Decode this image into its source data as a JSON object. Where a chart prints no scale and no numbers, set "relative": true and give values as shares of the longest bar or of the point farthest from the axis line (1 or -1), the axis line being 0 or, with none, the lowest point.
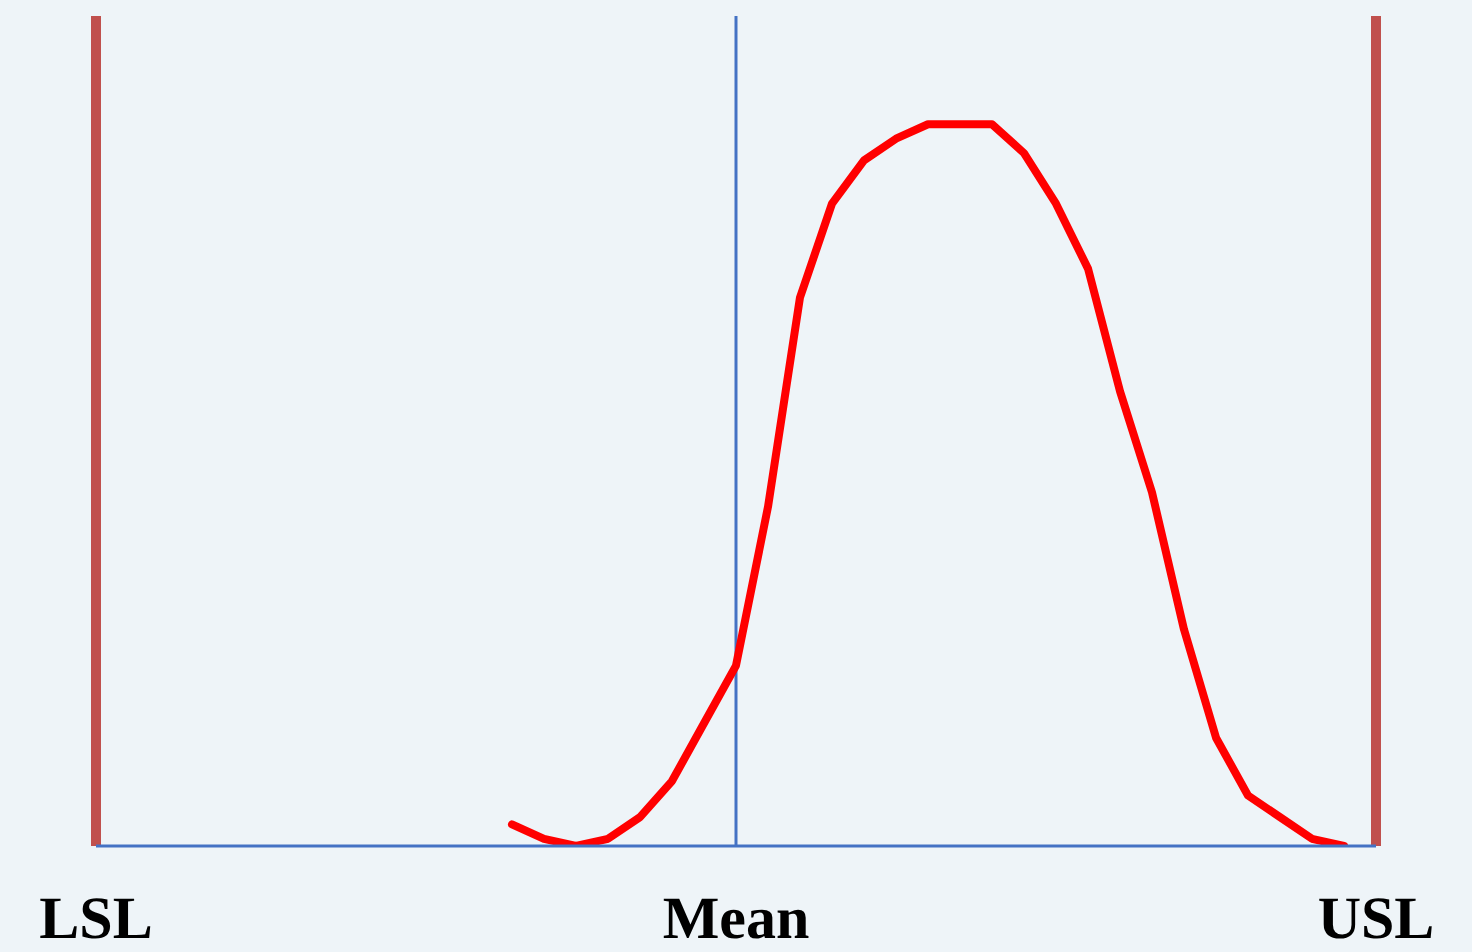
{
  "chart_data": {
    "type": "line",
    "relative": true,
    "marker": "none",
    "line_style": "solid",
    "categories": [
      "LSL",
      null,
      null,
      null,
      null,
      null,
      null,
      null,
      null,
      null,
      null,
      null,
      null,
      null,
      null,
      null,
      null,
      null,
      null,
      null,
      "Mean",
      null,
      null,
      null,
      null,
      null,
      null,
      null,
      null,
      null,
      null,
      null,
      null,
      null,
      null,
      null,
      null,
      null,
      null,
      null,
      "USL"
    ],
    "series": [
      {
        "color": "#ff0000",
        "values": [
          null,
          null,
          null,
          null,
          null,
          null,
          null,
          null,
          null,
          null,
          null,
          null,
          null,
          0.03,
          0.01,
          0,
          0.01,
          0.04,
          0.09,
          0.17,
          0.25,
          0.47,
          0.76,
          0.89,
          0.95,
          0.98,
          1,
          1,
          1,
          0.96,
          0.89,
          0.8,
          0.63,
          0.49,
          0.3,
          0.15,
          0.07,
          0.04,
          0.01,
          0,
          null
        ]
      }
    ],
    "ref_lines": [
      {
        "axis": "x",
        "value": "LSL",
        "color": "#c0504d"
      },
      {
        "axis": "x",
        "value": "Mean",
        "color": "#4472c4"
      },
      {
        "axis": "x",
        "value": "USL",
        "color": "#c0504d"
      }
    ]
  }
}
